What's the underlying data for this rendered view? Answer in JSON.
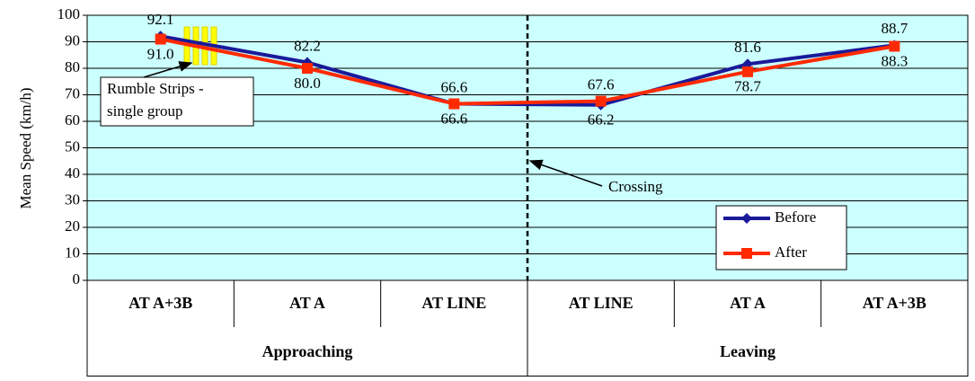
{
  "chart_data": {
    "type": "line",
    "y_label": "Mean Speed (km/h)",
    "categories": [
      "AT A+3B",
      "AT A",
      "AT LINE",
      "AT LINE",
      "AT A",
      "AT A+3B"
    ],
    "groups": [
      "Approaching",
      "Leaving"
    ],
    "series": [
      {
        "name": "Before",
        "color": "#1a1a9a",
        "marker": "diamond",
        "values": [
          92.1,
          82.2,
          66.6,
          66.2,
          81.6,
          88.7
        ],
        "value_labels": [
          "92.1",
          "82.2",
          "66.6",
          "66.2",
          "81.6",
          "88.7"
        ]
      },
      {
        "name": "After",
        "color": "#ff2a00",
        "marker": "square",
        "values": [
          91.0,
          80.0,
          66.6,
          67.6,
          78.7,
          88.3
        ],
        "value_labels": [
          "91.0",
          "80.0",
          "66.6",
          "67.6",
          "78.7",
          "88.3"
        ]
      }
    ],
    "ylim": [
      0,
      100
    ],
    "yticks": [
      0,
      10,
      20,
      30,
      40,
      50,
      60,
      70,
      80,
      90,
      100
    ],
    "grid": true,
    "rumble_strips_label": [
      "Rumble Strips -",
      "single group"
    ],
    "crossing_label": "Crossing"
  }
}
